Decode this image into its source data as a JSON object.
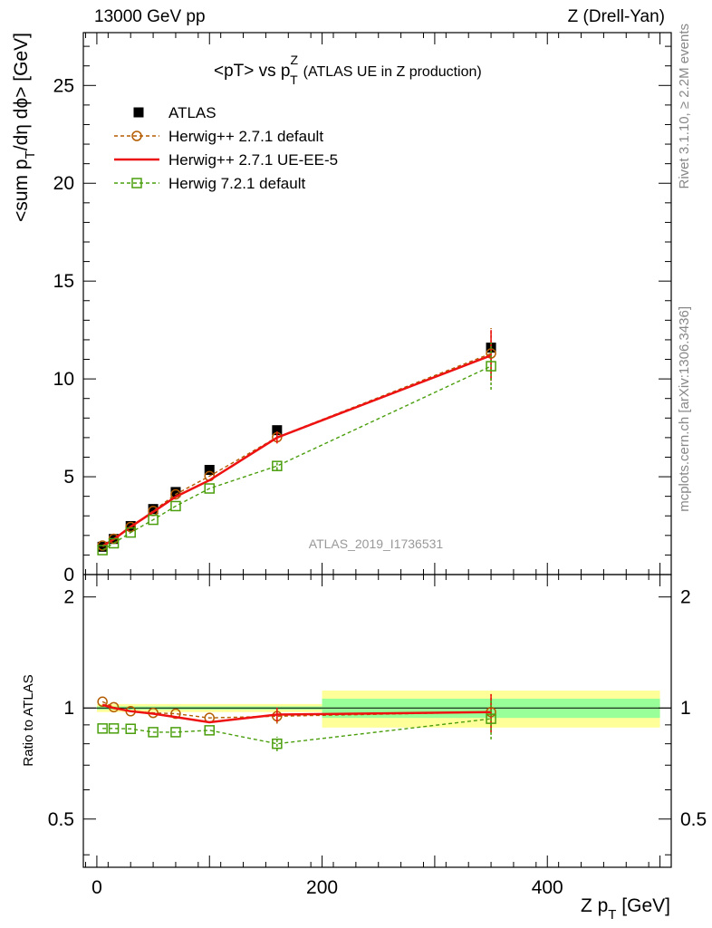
{
  "header": {
    "left": "13000 GeV pp",
    "right": "Z (Drell-Yan)"
  },
  "side_labels": {
    "rivet": "Rivet 3.1.10, ≥ 2.2M events",
    "mcplots": "mcplots.cern.ch [arXiv:1306.3436]"
  },
  "chart_data": {
    "type": "scatter",
    "title": "<pT> vs p",
    "title_super": "Z",
    "title_sub": "T",
    "title_note": "(ATLAS UE in Z production)",
    "watermark": "ATLAS_2019_I1736531",
    "top_panel": {
      "ylabel": "<sum p_T/dη dϕ> [GeV]",
      "ylim": [
        0,
        27.7
      ],
      "yticks": [
        "0",
        "5",
        "10",
        "15",
        "20",
        "25"
      ]
    },
    "bottom_panel": {
      "ylabel": "Ratio to ATLAS",
      "ylim": [
        0.37,
        2.3
      ],
      "yticks": [
        "0.5",
        "1",
        "2"
      ],
      "band_inner": [
        {
          "x": [
            0,
            200
          ],
          "lo": 0.99,
          "hi": 1.01
        },
        {
          "x": [
            200,
            500
          ],
          "lo": 0.94,
          "hi": 1.06
        }
      ],
      "band_outer": [
        {
          "x": [
            0,
            200
          ],
          "lo": 0.975,
          "hi": 1.025
        },
        {
          "x": [
            200,
            500
          ],
          "lo": 0.885,
          "hi": 1.115
        }
      ]
    },
    "xlabel": "Z p_T [GeV]",
    "xlim": [
      -12,
      510
    ],
    "xticks": [
      "0",
      "200",
      "400"
    ],
    "x": [
      5,
      15,
      30,
      50,
      70,
      100,
      160,
      350
    ],
    "legend_position": "top-left",
    "series": [
      {
        "name": "ATLAS",
        "color": "#000000",
        "marker": "square-filled",
        "values": [
          1.42,
          1.82,
          2.48,
          3.35,
          4.22,
          5.35,
          7.38,
          11.6
        ],
        "ratio": [
          1,
          1,
          1,
          1,
          1,
          1,
          1,
          1
        ]
      },
      {
        "name": "Herwig++ 2.7.1 default",
        "color": "#b35c00",
        "marker": "circle-open",
        "dash": true,
        "values": [
          1.48,
          1.83,
          2.43,
          3.25,
          4.1,
          5.03,
          7.02,
          11.3
        ],
        "ratio": [
          1.04,
          1.005,
          0.98,
          0.97,
          0.965,
          0.94,
          0.95,
          0.975
        ],
        "err": [
          0,
          0,
          0,
          0,
          0,
          0,
          0.3,
          1.3
        ]
      },
      {
        "name": "Herwig++ 2.7.1 UE-EE-5",
        "color": "#ee1111",
        "marker": "line",
        "values": [
          1.45,
          1.8,
          2.44,
          3.2,
          3.98,
          4.82,
          7.0,
          11.2
        ],
        "ratio": [
          1.02,
          1.0,
          0.98,
          0.965,
          0.945,
          0.915,
          0.96,
          0.975
        ],
        "err": [
          0,
          0,
          0,
          0,
          0,
          0,
          0.3,
          1.3
        ]
      },
      {
        "name": "Herwig 7.2.1 default",
        "color": "#4a9e0c",
        "marker": "square-open",
        "dash": true,
        "values": [
          1.25,
          1.6,
          2.15,
          2.8,
          3.5,
          4.4,
          5.55,
          10.65
        ],
        "ratio": [
          0.88,
          0.88,
          0.878,
          0.86,
          0.86,
          0.87,
          0.8,
          0.935
        ],
        "err": [
          0,
          0,
          0,
          0,
          0,
          0,
          0.2,
          1.2
        ]
      }
    ]
  }
}
